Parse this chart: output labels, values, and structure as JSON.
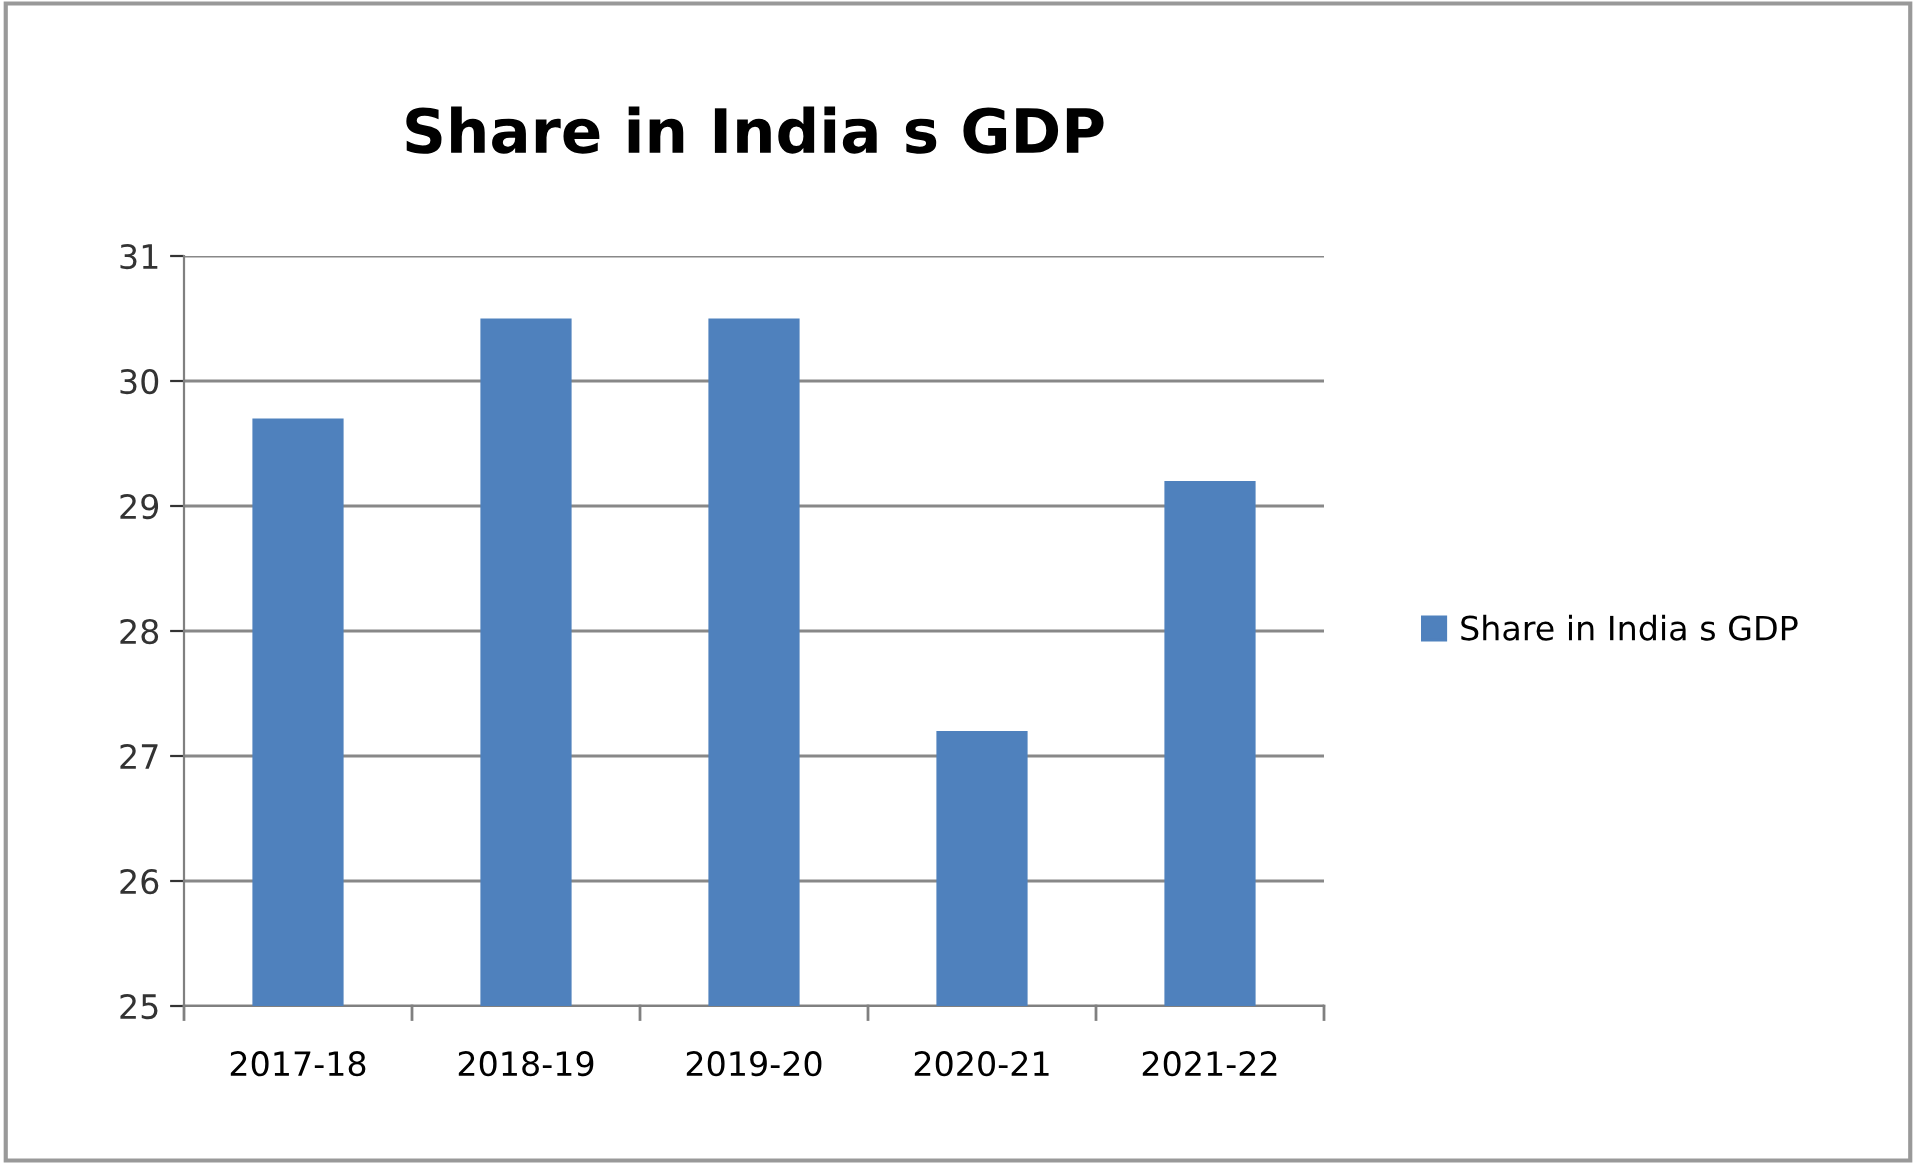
{
  "chart_data": {
    "type": "bar",
    "title": "Share in India s GDP",
    "categories": [
      "2017-18",
      "2018-19",
      "2019-20",
      "2020-21",
      "2021-22"
    ],
    "series": [
      {
        "name": "Share in India s GDP",
        "color": "#4f81bd",
        "values": [
          29.7,
          30.5,
          30.5,
          27.2,
          29.2
        ]
      }
    ],
    "ylim": [
      25,
      31
    ],
    "yticks": [
      25,
      26,
      27,
      28,
      29,
      30,
      31
    ],
    "grid": "y",
    "legend": "right"
  }
}
